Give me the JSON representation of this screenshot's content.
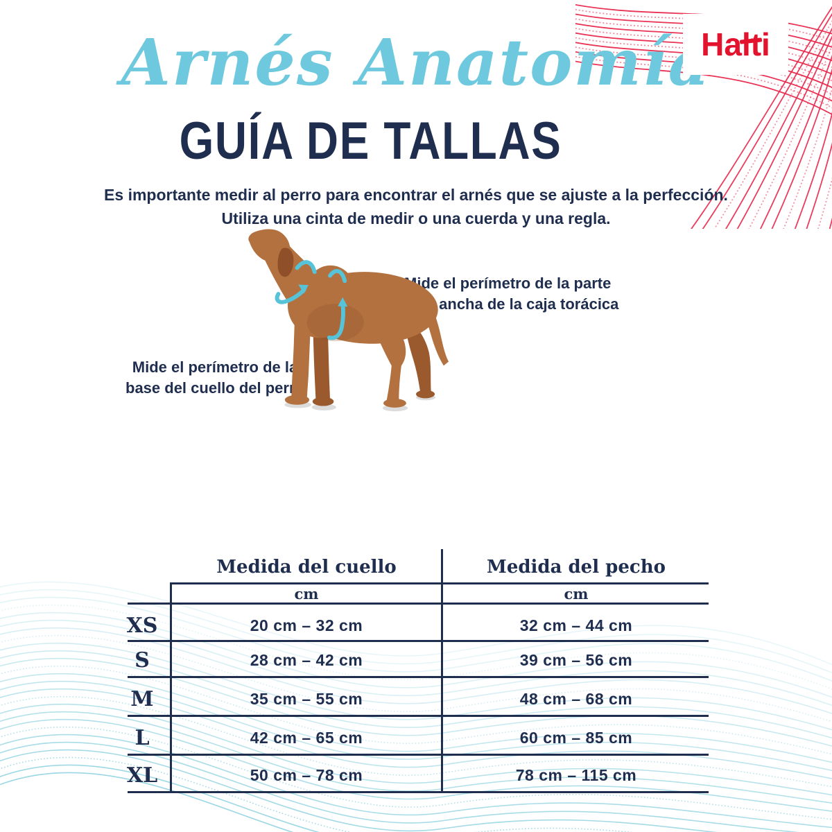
{
  "brand": {
    "logo_text": "Halti"
  },
  "header": {
    "script_title": "Arnés Anatomía",
    "main_title": "GUÍA DE TALLAS",
    "intro_line1": "Es importante medir al perro para encontrar el arnés que se ajuste a la perfección.",
    "intro_line2": "Utiliza una cinta de medir o una cuerda y una regla."
  },
  "diagram": {
    "chest_note_line1": "Mide el perímetro de la parte",
    "chest_note_line2": "más ancha de la caja torácica",
    "neck_note_line1": "Mide el perímetro de la",
    "neck_note_line2": "base del cuello del perro"
  },
  "table": {
    "col1_header": "Medida del cuello",
    "col2_header": "Medida del pecho",
    "unit_label_neck": "cm",
    "unit_label_chest": "cm",
    "rows": [
      {
        "size": "XS",
        "neck": "20 cm – 32 cm",
        "chest": "32 cm – 44 cm"
      },
      {
        "size": "S",
        "neck": "28 cm – 42 cm",
        "chest": "39 cm – 56 cm"
      },
      {
        "size": "M",
        "neck": "35 cm – 55 cm",
        "chest": "48 cm – 68 cm"
      },
      {
        "size": "L",
        "neck": "42 cm – 65 cm",
        "chest": "60 cm – 85 cm"
      },
      {
        "size": "XL",
        "neck": "50 cm – 78 cm",
        "chest": "78 cm – 115 cm"
      }
    ]
  },
  "colors": {
    "navy": "#1f2d4e",
    "script_blue": "#6fc9de",
    "arrow_teal": "#56c3d8",
    "brand_red": "#e4132d",
    "wave_red": "#e8274b",
    "wave_teal": "#8fd2e0",
    "dog_brown": "#b2713f"
  }
}
